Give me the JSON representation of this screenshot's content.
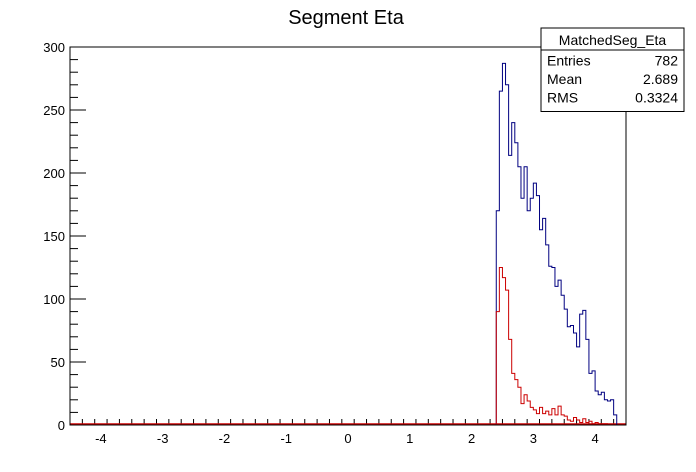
{
  "chart_data": {
    "type": "histogram",
    "title": "Segment Eta",
    "xlim": [
      -4.5,
      4.5
    ],
    "ylim": [
      0,
      300
    ],
    "x_ticks": [
      -4,
      -3,
      -2,
      -1,
      0,
      1,
      2,
      3,
      4
    ],
    "y_ticks": [
      0,
      50,
      100,
      150,
      200,
      250,
      300
    ],
    "bin_width": 0.05,
    "stats_box": {
      "name": "MatchedSeg_Eta",
      "rows": [
        {
          "label": "Entries",
          "value": "782"
        },
        {
          "label": "Mean",
          "value": "2.689"
        },
        {
          "label": "RMS",
          "value": "0.3324"
        }
      ]
    },
    "series": [
      {
        "color": "#000080",
        "bin_start": 2.4,
        "values": [
          170,
          265,
          287,
          270,
          214,
          240,
          224,
          205,
          180,
          205,
          170,
          180,
          192,
          182,
          155,
          164,
          143,
          126,
          125,
          110,
          115,
          103,
          92,
          78,
          79,
          73,
          62,
          88,
          91,
          68,
          41,
          43,
          27,
          24,
          26,
          20,
          19,
          20,
          8
        ]
      },
      {
        "color": "#cc0000",
        "bin_start": 2.4,
        "values": [
          90,
          125,
          117,
          107,
          68,
          41,
          36,
          30,
          17,
          24,
          19,
          14,
          12,
          9,
          14,
          9,
          11,
          8,
          13,
          8,
          15,
          8,
          7,
          4,
          3,
          6,
          4,
          2,
          5,
          2,
          3,
          1,
          2,
          1,
          1,
          1,
          0,
          0,
          0
        ]
      }
    ]
  }
}
